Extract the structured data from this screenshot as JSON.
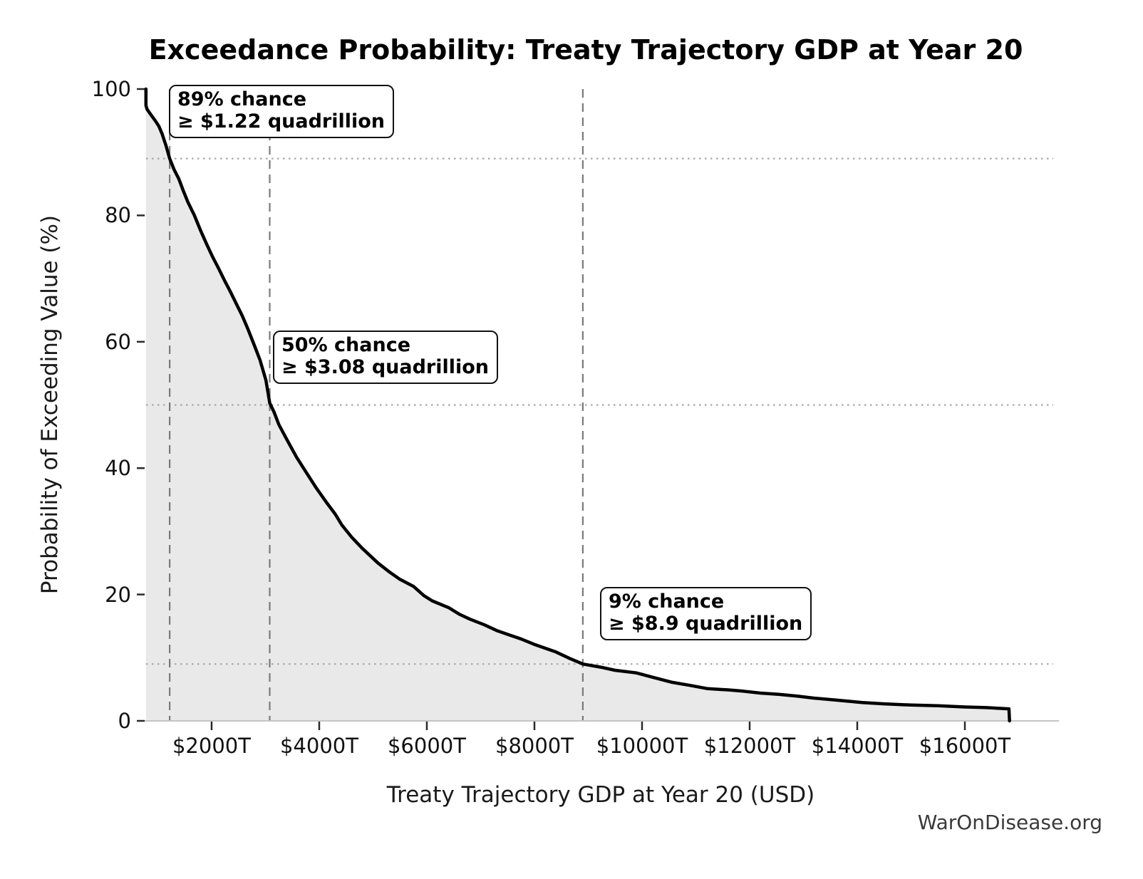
{
  "page": {
    "background": "#ffffff",
    "watermark": "WarOnDisease.org"
  },
  "chart_data": {
    "type": "line",
    "title": "Exceedance Probability: Treaty Trajectory GDP at Year 20",
    "xlabel": "Treaty Trajectory GDP at Year 20 (USD)",
    "ylabel": "Probability of Exceeding Value (%)",
    "x_unit_note": "x values in trillions of USD (T)",
    "xlim": [
      782,
      17642
    ],
    "ylim": [
      0,
      100
    ],
    "grid": "marker guide lines only (no regular grid)",
    "legend": "none",
    "x_ticks": [
      {
        "value": 2000,
        "label": "$2000T"
      },
      {
        "value": 4000,
        "label": "$4000T"
      },
      {
        "value": 6000,
        "label": "$6000T"
      },
      {
        "value": 8000,
        "label": "$8000T"
      },
      {
        "value": 10000,
        "label": "$10000T"
      },
      {
        "value": 12000,
        "label": "$12000T"
      },
      {
        "value": 14000,
        "label": "$14000T"
      },
      {
        "value": 16000,
        "label": "$16000T"
      }
    ],
    "y_ticks": [
      {
        "value": 0,
        "label": "0"
      },
      {
        "value": 20,
        "label": "20"
      },
      {
        "value": 40,
        "label": "40"
      },
      {
        "value": 60,
        "label": "60"
      },
      {
        "value": 80,
        "label": "80"
      },
      {
        "value": 100,
        "label": "100"
      }
    ],
    "markers": [
      {
        "probability_pct": 89,
        "gdp_trillions": 1220,
        "annotation_line1": "89% chance",
        "annotation_line2": "≥ $1.22 quadrillion"
      },
      {
        "probability_pct": 50,
        "gdp_trillions": 3080,
        "annotation_line1": "50% chance",
        "annotation_line2": "≥ $3.08 quadrillion"
      },
      {
        "probability_pct": 9,
        "gdp_trillions": 8900,
        "annotation_line1": "9% chance",
        "annotation_line2": "≥ $8.9 quadrillion"
      }
    ],
    "series": [
      {
        "name": "exceedance_curve",
        "points": [
          [
            780,
            100
          ],
          [
            780,
            97.4
          ],
          [
            800,
            96.8
          ],
          [
            850,
            96.2
          ],
          [
            900,
            95.6
          ],
          [
            960,
            94.9
          ],
          [
            1020,
            94.1
          ],
          [
            1080,
            92.9
          ],
          [
            1150,
            91.1
          ],
          [
            1220,
            89.0
          ],
          [
            1300,
            87.3
          ],
          [
            1390,
            85.8
          ],
          [
            1470,
            84.0
          ],
          [
            1560,
            82.1
          ],
          [
            1680,
            80.0
          ],
          [
            1800,
            77.5
          ],
          [
            1910,
            75.4
          ],
          [
            2020,
            73.4
          ],
          [
            2130,
            71.6
          ],
          [
            2240,
            69.7
          ],
          [
            2350,
            67.9
          ],
          [
            2460,
            66.0
          ],
          [
            2570,
            64.1
          ],
          [
            2680,
            61.9
          ],
          [
            2800,
            59.3
          ],
          [
            2900,
            57.1
          ],
          [
            3010,
            53.9
          ],
          [
            3080,
            50.3
          ],
          [
            3160,
            48.9
          ],
          [
            3250,
            46.9
          ],
          [
            3400,
            44.5
          ],
          [
            3580,
            41.7
          ],
          [
            3760,
            39.3
          ],
          [
            3950,
            36.8
          ],
          [
            4150,
            34.4
          ],
          [
            4300,
            32.7
          ],
          [
            4420,
            31.0
          ],
          [
            4600,
            29.1
          ],
          [
            4800,
            27.3
          ],
          [
            5090,
            25.0
          ],
          [
            5300,
            23.6
          ],
          [
            5500,
            22.4
          ],
          [
            5750,
            21.3
          ],
          [
            5950,
            19.8
          ],
          [
            6100,
            19.0
          ],
          [
            6410,
            17.9
          ],
          [
            6600,
            16.9
          ],
          [
            6800,
            16.1
          ],
          [
            7070,
            15.2
          ],
          [
            7300,
            14.3
          ],
          [
            7500,
            13.7
          ],
          [
            7740,
            13.0
          ],
          [
            8000,
            12.1
          ],
          [
            8200,
            11.5
          ],
          [
            8400,
            10.9
          ],
          [
            8650,
            9.9
          ],
          [
            8900,
            9.0
          ],
          [
            9230,
            8.5
          ],
          [
            9500,
            8.0
          ],
          [
            9890,
            7.6
          ],
          [
            10200,
            6.9
          ],
          [
            10560,
            6.1
          ],
          [
            10900,
            5.6
          ],
          [
            11220,
            5.1
          ],
          [
            11600,
            4.9
          ],
          [
            11880,
            4.7
          ],
          [
            12200,
            4.4
          ],
          [
            12540,
            4.2
          ],
          [
            12900,
            3.9
          ],
          [
            13200,
            3.6
          ],
          [
            13600,
            3.3
          ],
          [
            14090,
            2.9
          ],
          [
            14500,
            2.7
          ],
          [
            15000,
            2.5
          ],
          [
            15500,
            2.4
          ],
          [
            16000,
            2.2
          ],
          [
            16400,
            2.1
          ],
          [
            16820,
            1.9
          ],
          [
            16830,
            0
          ]
        ]
      }
    ],
    "colors": {
      "curve": "#000000",
      "fill": "#e9e9e9",
      "marker_dash": "#7a7a7a",
      "marker_dot": "#a8a8a8",
      "axis": "#c4c4c4",
      "tick": "#2a2a2a",
      "watermark": "#3a3a3a"
    }
  }
}
